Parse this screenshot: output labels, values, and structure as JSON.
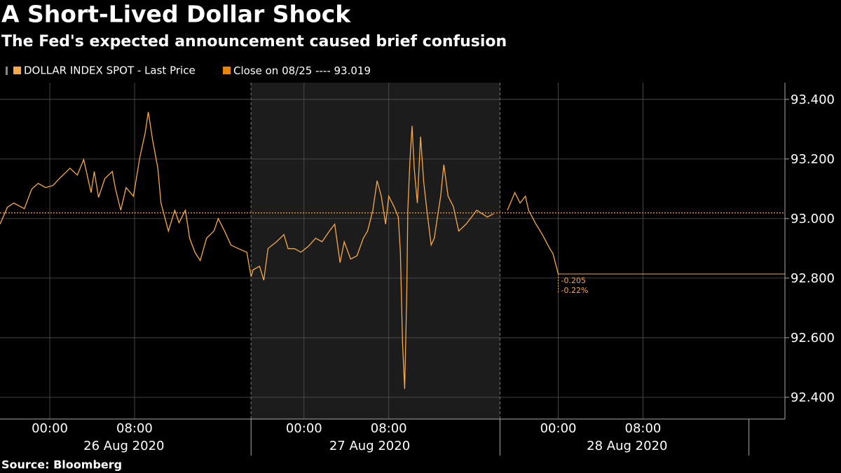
{
  "chart_data": {
    "type": "line",
    "title": "A Short-Lived Dollar Shock",
    "subtitle": "The Fed's expected announcement caused brief confusion",
    "source": "Source: Bloomberg",
    "series": [
      {
        "name": "DOLLAR INDEX SPOT - Last Price",
        "color": "#f6a94b",
        "x": [
          -4.7,
          -4.0,
          -3.4,
          -2.4,
          -1.7,
          -1.1,
          -0.4,
          0.3,
          0.9,
          1.6,
          1.9,
          2.6,
          3.2,
          3.6,
          3.9,
          4.2,
          4.6,
          5.2,
          5.9,
          6.2,
          6.7,
          7.2,
          7.9,
          8.5,
          9.0,
          9.3,
          9.7,
          10.2,
          10.5,
          11.2,
          11.8,
          12.2,
          12.8,
          13.2,
          13.7,
          14.2,
          14.8,
          15.5,
          15.9,
          16.5,
          17.1,
          17.8,
          18.6,
          19.0,
          19.2,
          19.8,
          20.2,
          20.6,
          21.4,
          22.1,
          22.5,
          23.1,
          23.7,
          24.4,
          25.1,
          25.7,
          26.4,
          26.9,
          27.4,
          27.8,
          28.4,
          29.0,
          29.6,
          30.0,
          30.5,
          30.9,
          31.3,
          31.7,
          32.0,
          32.5,
          32.9,
          33.1,
          33.3,
          33.5,
          33.7,
          33.8,
          34.0,
          34.2,
          34.4,
          34.7,
          35.0,
          35.3,
          35.6,
          36.0,
          36.3,
          36.6,
          36.9,
          37.2,
          37.6,
          38.1,
          38.6,
          39.3,
          40.3,
          41.3,
          41.9,
          42.5,
          43.2,
          43.9,
          44.4,
          44.9,
          45.2,
          45.9,
          46.5,
          47.2,
          47.5,
          48.0
        ],
        "values": [
          92.981,
          93.038,
          93.052,
          93.033,
          93.099,
          93.118,
          93.104,
          93.111,
          93.134,
          93.158,
          93.169,
          93.146,
          93.198,
          93.134,
          93.087,
          93.158,
          93.071,
          93.134,
          93.158,
          93.099,
          93.028,
          93.104,
          93.075,
          93.205,
          93.287,
          93.358,
          93.264,
          93.169,
          93.052,
          92.958,
          93.028,
          92.986,
          93.028,
          92.934,
          92.887,
          92.859,
          92.934,
          92.958,
          93.0,
          92.958,
          92.911,
          92.899,
          92.887,
          92.805,
          92.828,
          92.84,
          92.793,
          92.899,
          92.922,
          92.946,
          92.899,
          92.899,
          92.887,
          92.906,
          92.934,
          92.922,
          92.958,
          92.981,
          92.852,
          92.922,
          92.864,
          92.875,
          92.934,
          92.958,
          93.028,
          93.127,
          93.075,
          92.981,
          93.075,
          93.04,
          93.005,
          92.887,
          92.581,
          92.428,
          92.746,
          93.028,
          93.193,
          93.311,
          93.169,
          93.052,
          93.275,
          93.122,
          93.028,
          92.911,
          92.934,
          93.005,
          93.075,
          93.181,
          93.075,
          93.04,
          92.958,
          92.981,
          93.028,
          93.005,
          93.016,
          null,
          93.028,
          93.087,
          93.052,
          93.075,
          93.028,
          92.981,
          92.946,
          92.899,
          92.882,
          92.814
        ]
      }
    ],
    "reference_line": {
      "name": "Close on 08/25 ----",
      "value": 93.019,
      "color": "#e8850c"
    },
    "annotations": [
      "-0.205",
      "-0.22%"
    ],
    "xlim": [
      -4.7,
      69.4
    ],
    "ylim": [
      92.327,
      93.456
    ],
    "yticks": [
      {
        "value": 92.4,
        "label": "92.400"
      },
      {
        "value": 92.6,
        "label": "92.600"
      },
      {
        "value": 92.8,
        "label": "92.800"
      },
      {
        "value": 93.0,
        "label": "93.000"
      },
      {
        "value": 93.2,
        "label": "93.200"
      },
      {
        "value": 93.4,
        "label": "93.400"
      }
    ],
    "xticks": [
      {
        "value": 0,
        "label": "00:00"
      },
      {
        "value": 8,
        "label": "08:00"
      },
      {
        "value": 24,
        "label": "00:00"
      },
      {
        "value": 32,
        "label": "08:00"
      },
      {
        "value": 48,
        "label": "00:00"
      },
      {
        "value": 56,
        "label": "08:00"
      }
    ],
    "date_labels": [
      {
        "value": 7,
        "label": "26 Aug 2020"
      },
      {
        "value": 30.2,
        "label": "27 Aug 2020"
      },
      {
        "value": 54.5,
        "label": "28 Aug 2020"
      }
    ],
    "day_separators": [
      19,
      42.5,
      66
    ],
    "shaded_range": [
      19,
      42.5
    ],
    "grid": true
  }
}
